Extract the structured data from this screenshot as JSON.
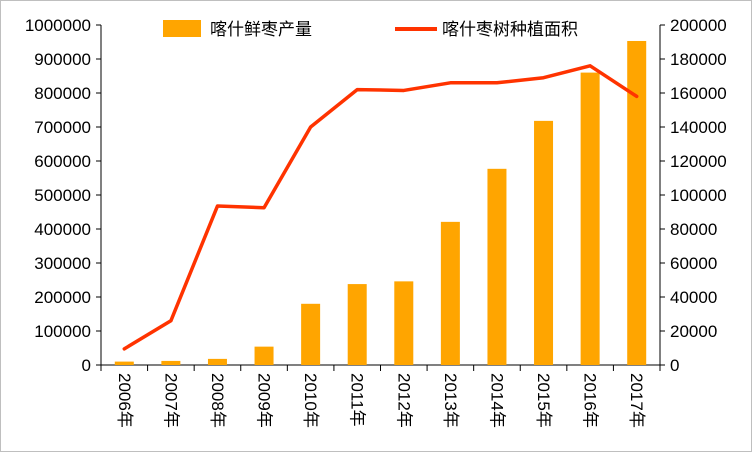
{
  "chart_data": {
    "type": "bar+line",
    "categories": [
      "2006年",
      "2007年",
      "2008年",
      "2009年",
      "2010年",
      "2011年",
      "2012年",
      "2013年",
      "2014年",
      "2015年",
      "2016年",
      "2017年"
    ],
    "series": [
      {
        "name": "喀什鲜枣产量",
        "type": "bar",
        "axis": "left",
        "color": "#FFA500",
        "values": [
          10000,
          12000,
          18000,
          54000,
          180000,
          238000,
          246000,
          421000,
          577000,
          718000,
          860000,
          953000
        ]
      },
      {
        "name": "喀什枣树种植面积",
        "type": "line",
        "axis": "right",
        "color": "#FF3300",
        "values": [
          9500,
          26000,
          93500,
          92500,
          140000,
          162000,
          161500,
          166000,
          166000,
          169000,
          176000,
          158000
        ]
      }
    ],
    "y_left": {
      "ylim": [
        0,
        1000000
      ],
      "ticks": [
        "0",
        "100000",
        "200000",
        "300000",
        "400000",
        "500000",
        "600000",
        "700000",
        "800000",
        "900000",
        "1000000"
      ]
    },
    "y_right": {
      "ylim": [
        0,
        200000
      ],
      "ticks": [
        "0",
        "20000",
        "40000",
        "60000",
        "80000",
        "100000",
        "120000",
        "140000",
        "160000",
        "180000",
        "200000"
      ]
    },
    "legend": {
      "placement": "top",
      "bar_label": "喀什鲜枣产量",
      "line_label": "喀什枣树种植面积"
    },
    "grid": false,
    "title": "",
    "xlabel": "",
    "ylabel": ""
  }
}
